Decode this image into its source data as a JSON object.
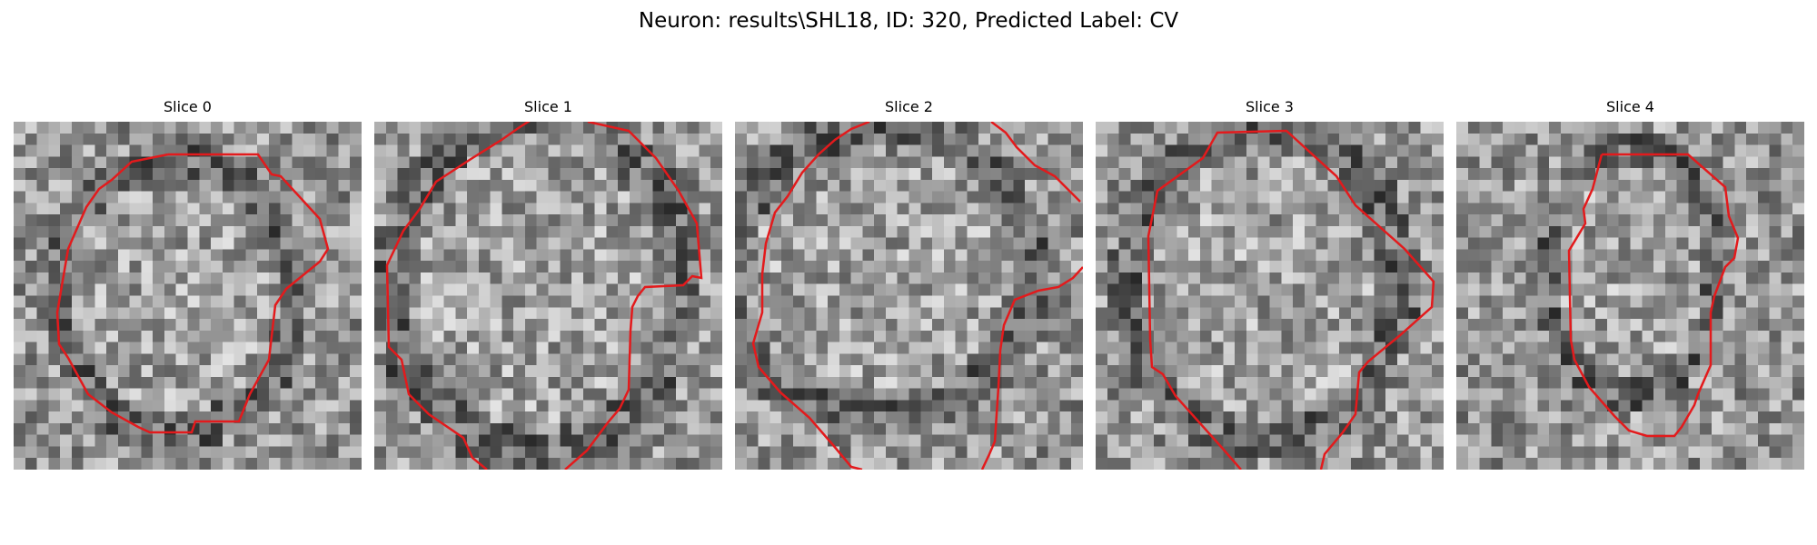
{
  "figure": {
    "title": "Neuron: results\\SHL18, ID: 320, Predicted Label: CV"
  },
  "panels": [
    {
      "title": "Slice 0"
    },
    {
      "title": "Slice 1"
    },
    {
      "title": "Slice 2"
    },
    {
      "title": "Slice 3"
    },
    {
      "title": "Slice 4"
    }
  ],
  "image": {
    "grid": 30,
    "colormap": "gray",
    "contour_color": "#e31a1c"
  }
}
